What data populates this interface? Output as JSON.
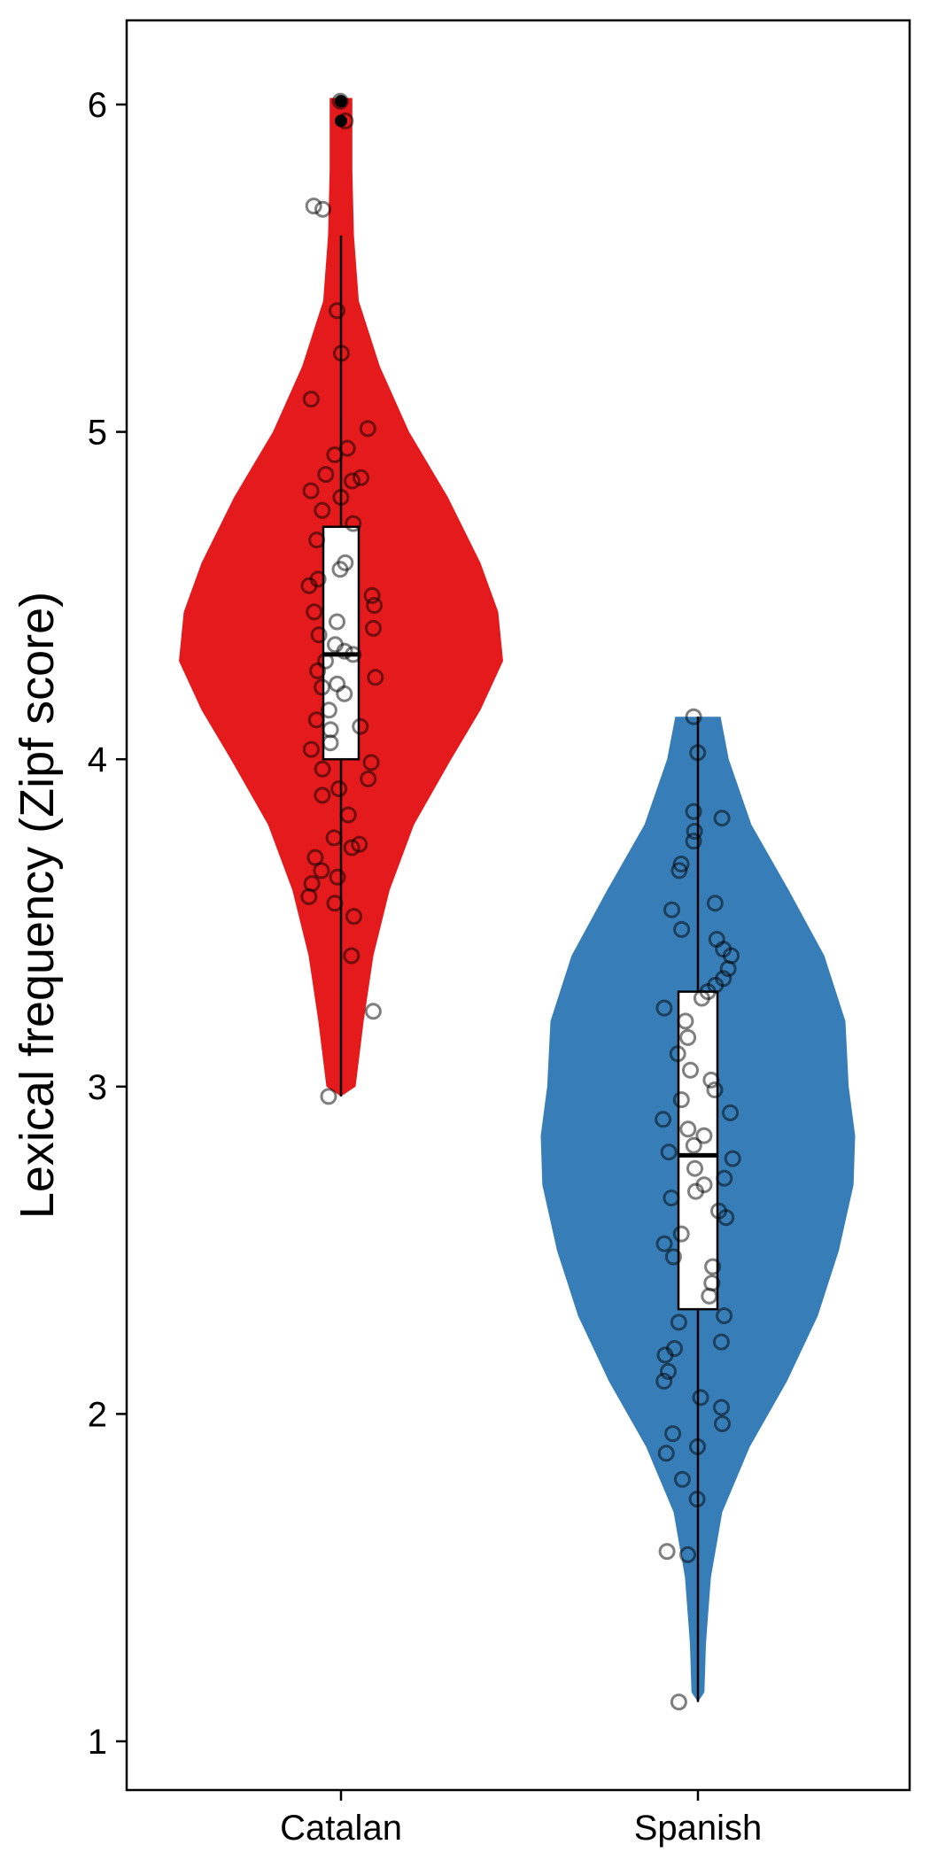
{
  "chart_data": {
    "type": "violin",
    "title": "",
    "xlabel": "",
    "ylabel": "Lexical frequency (Zipf score)",
    "ylim": [
      0.9,
      6.27
    ],
    "yticks": [
      1,
      2,
      3,
      4,
      5,
      6
    ],
    "categories": [
      "Catalan",
      "Spanish"
    ],
    "grid": false,
    "legend": "none",
    "groups": [
      {
        "name": "Catalan",
        "color": "#E41A1C",
        "box": {
          "q1": 4.0,
          "median": 4.32,
          "q3": 4.71,
          "whisker_low": 2.97,
          "whisker_high": 5.6
        },
        "outliers": [
          6.01,
          5.95
        ],
        "density": [
          [
            2.97,
            0.0
          ],
          [
            3.0,
            0.09
          ],
          [
            3.2,
            0.14
          ],
          [
            3.4,
            0.2
          ],
          [
            3.6,
            0.3
          ],
          [
            3.8,
            0.45
          ],
          [
            4.0,
            0.68
          ],
          [
            4.15,
            0.86
          ],
          [
            4.3,
            1.0
          ],
          [
            4.45,
            0.97
          ],
          [
            4.6,
            0.86
          ],
          [
            4.8,
            0.66
          ],
          [
            5.0,
            0.42
          ],
          [
            5.2,
            0.24
          ],
          [
            5.4,
            0.11
          ],
          [
            5.6,
            0.08
          ],
          [
            5.8,
            0.07
          ],
          [
            6.02,
            0.07
          ]
        ],
        "points": [
          6.01,
          5.95,
          5.69,
          5.68,
          5.37,
          5.24,
          5.1,
          5.01,
          4.95,
          4.93,
          4.87,
          4.86,
          4.85,
          4.82,
          4.8,
          4.76,
          4.72,
          4.67,
          4.6,
          4.58,
          4.55,
          4.53,
          4.5,
          4.47,
          4.45,
          4.42,
          4.4,
          4.38,
          4.35,
          4.33,
          4.32,
          4.3,
          4.27,
          4.25,
          4.23,
          4.22,
          4.2,
          4.15,
          4.12,
          4.1,
          4.09,
          4.05,
          4.03,
          3.99,
          3.97,
          3.94,
          3.91,
          3.89,
          3.83,
          3.76,
          3.74,
          3.73,
          3.7,
          3.66,
          3.64,
          3.62,
          3.58,
          3.56,
          3.52,
          3.4,
          3.23,
          2.97
        ]
      },
      {
        "name": "Spanish",
        "color": "#377EB8",
        "box": {
          "q1": 2.32,
          "median": 2.79,
          "q3": 3.29,
          "whisker_low": 1.12,
          "whisker_high": 4.13
        },
        "outliers": [],
        "density": [
          [
            1.12,
            0.0
          ],
          [
            1.15,
            0.04
          ],
          [
            1.3,
            0.05
          ],
          [
            1.5,
            0.08
          ],
          [
            1.7,
            0.15
          ],
          [
            1.9,
            0.32
          ],
          [
            2.1,
            0.55
          ],
          [
            2.3,
            0.74
          ],
          [
            2.5,
            0.87
          ],
          [
            2.7,
            0.96
          ],
          [
            2.85,
            0.97
          ],
          [
            3.0,
            0.93
          ],
          [
            3.2,
            0.91
          ],
          [
            3.4,
            0.78
          ],
          [
            3.6,
            0.56
          ],
          [
            3.8,
            0.33
          ],
          [
            4.0,
            0.19
          ],
          [
            4.13,
            0.14
          ]
        ],
        "points": [
          4.13,
          4.02,
          3.84,
          3.82,
          3.78,
          3.75,
          3.68,
          3.66,
          3.56,
          3.54,
          3.48,
          3.45,
          3.42,
          3.4,
          3.36,
          3.33,
          3.31,
          3.29,
          3.27,
          3.24,
          3.2,
          3.15,
          3.1,
          3.05,
          3.02,
          2.99,
          2.96,
          2.92,
          2.9,
          2.87,
          2.85,
          2.82,
          2.8,
          2.78,
          2.75,
          2.72,
          2.7,
          2.68,
          2.66,
          2.62,
          2.6,
          2.55,
          2.52,
          2.48,
          2.45,
          2.4,
          2.36,
          2.3,
          2.28,
          2.22,
          2.2,
          2.18,
          2.13,
          2.1,
          2.05,
          2.02,
          1.97,
          1.94,
          1.9,
          1.88,
          1.8,
          1.74,
          1.58,
          1.57,
          1.12
        ]
      }
    ]
  }
}
